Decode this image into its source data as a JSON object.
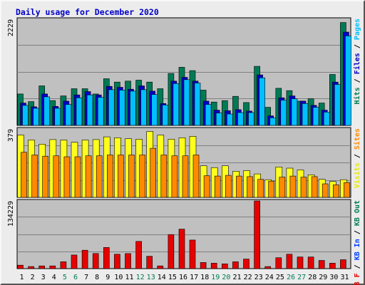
{
  "chart_data": {
    "type": "bar",
    "title": "Daily usage for December 2020",
    "categories": [
      "1",
      "2",
      "3",
      "4",
      "5",
      "6",
      "7",
      "8",
      "9",
      "10",
      "11",
      "12",
      "13",
      "14",
      "15",
      "16",
      "17",
      "18",
      "19",
      "20",
      "21",
      "22",
      "23",
      "24",
      "25",
      "26",
      "27",
      "28",
      "29",
      "30",
      "31"
    ],
    "weekend_days": [
      "5",
      "6",
      "12",
      "13",
      "19",
      "20",
      "26",
      "27"
    ],
    "colors": {
      "hits": "#007a55",
      "files": "#0000c8",
      "pages": "#00bfff",
      "visits": "#ffff1e",
      "sites": "#ff8a00",
      "kbin": "#0040ff",
      "kbout": "#007a55",
      "kbf": "#e60000",
      "plot_bg": "#c0c0c0",
      "gridline": "#808080",
      "weekday_label": "#000000",
      "weekend_label": "#007a55"
    },
    "panels": [
      {
        "name": "hits-files-pages",
        "max_label": "2229",
        "max_value": 2229,
        "legend": [
          {
            "text": "Hits",
            "color": "#007a55"
          },
          {
            "text": "Files",
            "color": "#0000c8"
          },
          {
            "text": "Pages",
            "color": "#00bfff"
          }
        ],
        "legend_separator": " / ",
        "series": [
          {
            "name": "Hits",
            "color": "#007a55",
            "values": [
              660,
              500,
              830,
              520,
              620,
              770,
              770,
              660,
              980,
              910,
              930,
              950,
              910,
              770,
              1090,
              1220,
              1150,
              740,
              490,
              520,
              610,
              480,
              1240,
              380,
              780,
              730,
              510,
              560,
              470,
              1070,
              2160
            ]
          },
          {
            "name": "Files",
            "color": "#0000c8",
            "values": [
              470,
              390,
              660,
              400,
              510,
              640,
              710,
              640,
              820,
              800,
              760,
              830,
              720,
              460,
              930,
              1010,
              930,
              510,
              320,
              310,
              330,
              300,
              1060,
              200,
              580,
              620,
              510,
              420,
              320,
              910,
              1960
            ]
          },
          {
            "name": "Pages",
            "color": "#00bfff",
            "values": [
              420,
              360,
              600,
              360,
              440,
              580,
              640,
              590,
              750,
              740,
              720,
              750,
              650,
              430,
              880,
              960,
              890,
              440,
              260,
              240,
              270,
              270,
              1000,
              160,
              530,
              560,
              460,
              380,
              280,
              860,
              1880
            ]
          }
        ]
      },
      {
        "name": "visits-sites",
        "max_label": "379",
        "max_value": 379,
        "legend": [
          {
            "text": "Visits",
            "color": "#e8e800"
          },
          {
            "text": "Sites",
            "color": "#ff8a00"
          }
        ],
        "legend_separator": " / ",
        "series": [
          {
            "name": "Visits",
            "color": "#ffff1e",
            "values": [
              345,
              318,
              295,
              320,
              318,
              305,
              318,
              320,
              335,
              330,
              325,
              322,
              365,
              345,
              322,
              330,
              338,
              175,
              165,
              175,
              145,
              148,
              130,
              98,
              168,
              162,
              152,
              125,
              100,
              88,
              98
            ]
          },
          {
            "name": "Sites",
            "color": "#ff8a00",
            "values": [
              250,
              235,
              228,
              230,
              225,
              225,
              230,
              230,
              235,
              235,
              235,
              235,
              272,
              235,
              230,
              230,
              235,
              120,
              118,
              122,
              118,
              115,
              100,
              90,
              112,
              118,
              112,
              115,
              75,
              70,
              82
            ]
          }
        ]
      },
      {
        "name": "kbin-kbout-kbf",
        "max_label": "134229",
        "max_value": 134229,
        "legend": [
          {
            "text": "KB F",
            "color": "#e60000"
          },
          {
            "text": "KB In",
            "color": "#0040ff"
          },
          {
            "text": "KB Out",
            "color": "#007a55"
          }
        ],
        "legend_separator": " / ",
        "series": [
          {
            "name": "KB F",
            "color": "#e60000",
            "values": [
              6800,
              4100,
              5400,
              5400,
              13500,
              27000,
              36500,
              30000,
              41900,
              28500,
              29800,
              54000,
              24500,
              5400,
              67500,
              78300,
              56700,
              12200,
              10800,
              9500,
              13500,
              18900,
              134229,
              4100,
              21600,
              28500,
              23000,
              23000,
              16200,
              10800,
              17600
            ]
          }
        ]
      }
    ]
  }
}
